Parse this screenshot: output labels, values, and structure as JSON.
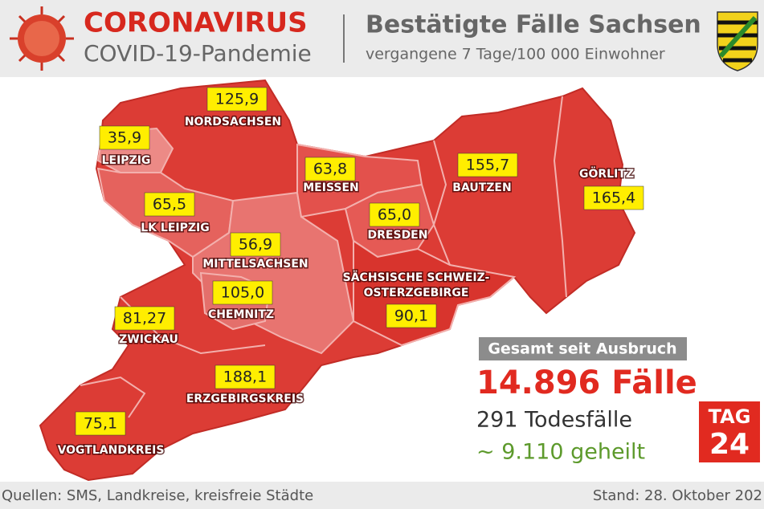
{
  "header": {
    "title": "CORONAVIRUS",
    "subtitle": "COVID-19-Pandemie",
    "heading": "Bestätigte Fälle Sachsen",
    "subheading": "vergangene 7 Tage/100 000 Einwohner"
  },
  "regions": [
    {
      "name": "NORDSACHSEN",
      "value": "125,9"
    },
    {
      "name": "LEIPZIG",
      "value": "35,9"
    },
    {
      "name": "MEISSEN",
      "value": "63,8"
    },
    {
      "name": "BAUTZEN",
      "value": "155,7"
    },
    {
      "name": "GÖRLITZ",
      "value": "165,4"
    },
    {
      "name": "LK LEIPZIG",
      "value": "65,5"
    },
    {
      "name": "DRESDEN",
      "value": "65,0"
    },
    {
      "name": "MITTELSACHSEN",
      "value": "56,9"
    },
    {
      "name": [
        "SÄCHSISCHE SCHWEIZ-",
        "OSTERZGEBIRGE"
      ],
      "value": "90,1"
    },
    {
      "name": "CHEMNITZ",
      "value": "105,0"
    },
    {
      "name": "ZWICKAU",
      "value": "81,27"
    },
    {
      "name": "ERZGEBIRGSKREIS",
      "value": "188,1"
    },
    {
      "name": "VOGTLANDKREIS",
      "value": "75,1"
    }
  ],
  "totals": {
    "label": "Gesamt seit Ausbruch",
    "cases": "14.896 Fälle",
    "deaths": "291 Todesfälle",
    "recovered": "~ 9.110 geheilt"
  },
  "logo": {
    "top": "TAG",
    "bottom": "24"
  },
  "footer": {
    "source": "Quellen: SMS, Landkreise, kreisfreie Städte",
    "date": "Stand: 28. Oktober 202"
  }
}
